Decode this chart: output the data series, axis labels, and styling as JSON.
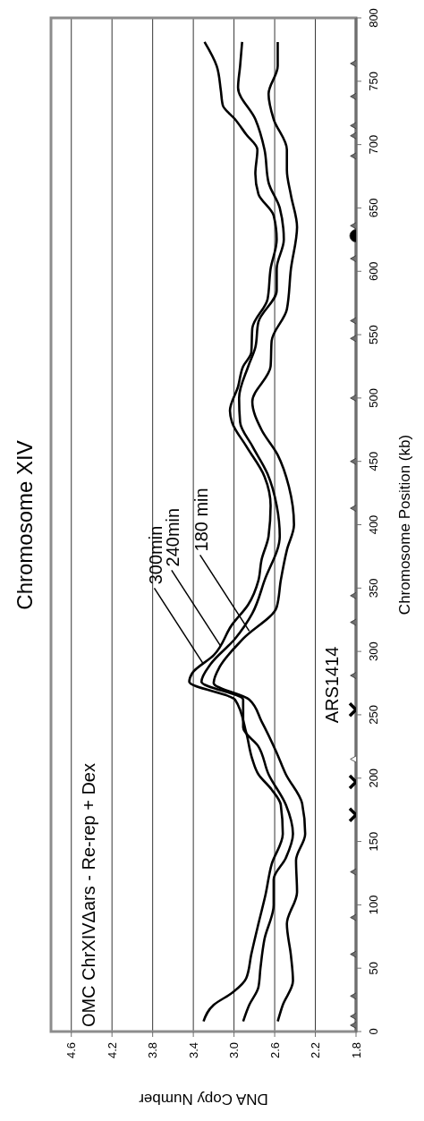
{
  "chart_data": {
    "type": "line",
    "title": "Chromosome XIV",
    "xlabel": "DNA Copy Number",
    "ylabel": "Chromosome Position (kb)",
    "xlim": [
      4.8,
      1.8
    ],
    "xticks": [
      4.6,
      4.2,
      3.8,
      3.4,
      {
        "value": 3.0,
        "label": "3.0"
      },
      2.6,
      2.2,
      1.8
    ],
    "ylim": [
      0,
      800
    ],
    "yticks": [
      0,
      50,
      100,
      150,
      200,
      250,
      300,
      350,
      400,
      450,
      500,
      550,
      600,
      650,
      700,
      750,
      800
    ],
    "grid": "x",
    "line_style": "solid",
    "annotations": [
      "OMC ChrXIVΔars - Re-rep + Dex",
      {
        "text": "300min",
        "x": 3.3,
        "y": 290
      },
      {
        "text": "240min",
        "x": 3.13,
        "y": 304
      },
      {
        "text": "180 min",
        "x": 2.85,
        "y": 316
      },
      {
        "text": "ARS1414",
        "x": 1.8,
        "y": 254
      }
    ],
    "series": [
      {
        "type": "line",
        "color": "#000000",
        "x": [
          3.3,
          3.2,
          3.01,
          2.88,
          2.83,
          2.76,
          2.69,
          2.63,
          2.52,
          2.54,
          2.63,
          2.76,
          2.82,
          2.88,
          2.99,
          3.44,
          3.41,
          3.2,
          3.02,
          2.86,
          2.76,
          2.73,
          2.66,
          2.64,
          2.7,
          2.88,
          3.02,
          3.04,
          2.96,
          2.91,
          2.83,
          2.82,
          2.67,
          2.64,
          2.58,
          2.61,
          2.76,
          2.79,
          2.77,
          2.88,
          2.99,
          3.11,
          3.13,
          3.17,
          3.29
        ],
        "values": [
          8,
          21,
          31,
          42,
          61,
          85,
          108,
          132,
          156,
          179,
          191,
          203,
          215,
          236,
          262,
          276,
          283,
          297,
          321,
          337,
          356,
          372,
          391,
          415,
          438,
          462,
          481,
          490,
          509,
          525,
          536,
          555,
          578,
          602,
          625,
          644,
          661,
          677,
          696,
          708,
          720,
          731,
          743,
          762,
          781
        ]
      },
      {
        "type": "line",
        "color": "#000000",
        "x": [
          2.91,
          2.85,
          2.76,
          2.74,
          2.7,
          2.61,
          2.61,
          2.49,
          2.42,
          2.49,
          2.66,
          2.76,
          2.91,
          2.91,
          3.32,
          3.23,
          2.99,
          2.82,
          2.7,
          2.55,
          2.58,
          2.67,
          2.82,
          2.94,
          2.95,
          2.86,
          2.79,
          2.76,
          2.58,
          2.58,
          2.51,
          2.55,
          2.66,
          2.7,
          2.79,
          2.96,
          2.94,
          2.92
        ],
        "values": [
          8,
          21,
          35,
          50,
          73,
          100,
          120,
          137,
          156,
          179,
          203,
          225,
          240,
          262,
          276,
          290,
          310,
          330,
          356,
          391,
          415,
          440,
          462,
          481,
          500,
          525,
          540,
          560,
          585,
          602,
          625,
          650,
          670,
          696,
          720,
          745,
          762,
          781
        ]
      },
      {
        "type": "line",
        "color": "#000000",
        "x": [
          2.57,
          2.52,
          2.42,
          2.44,
          2.48,
          2.38,
          2.39,
          2.3,
          2.33,
          2.49,
          2.58,
          2.73,
          2.85,
          3.2,
          3.14,
          2.91,
          2.58,
          2.54,
          2.48,
          2.41,
          2.46,
          2.57,
          2.73,
          2.82,
          2.64,
          2.63,
          2.48,
          2.44,
          2.38,
          2.44,
          2.48,
          2.48,
          2.61,
          2.66,
          2.57,
          2.57
        ],
        "values": [
          8,
          21,
          40,
          60,
          85,
          110,
          135,
          156,
          180,
          203,
          220,
          245,
          262,
          275,
          288,
          310,
          335,
          356,
          380,
          400,
          430,
          455,
          475,
          497,
          525,
          545,
          570,
          602,
          635,
          660,
          680,
          696,
          720,
          740,
          762,
          781
        ]
      },
      {
        "type": "scatter",
        "color": "#6e6e6e",
        "marker": "triangle",
        "x": [
          1.8,
          1.8,
          1.8,
          1.8,
          1.8,
          1.8,
          1.8,
          1.8,
          1.8,
          1.8,
          1.8,
          1.8,
          1.8,
          1.8,
          1.8,
          1.8,
          1.8,
          1.8,
          1.8,
          1.8,
          1.8
        ],
        "values": [
          5,
          12,
          28,
          61,
          90,
          126,
          281,
          323,
          344,
          413,
          450,
          500,
          547,
          561,
          610,
          636,
          691,
          707,
          715,
          738,
          764
        ]
      },
      {
        "type": "scatter",
        "color": "#ffffff",
        "marker": "triangle",
        "x": [
          1.8
        ],
        "values": [
          215
        ]
      },
      {
        "type": "scatter",
        "color": "#000000",
        "marker": "cross",
        "x": [
          1.8,
          1.8,
          1.8
        ],
        "values": [
          171,
          197,
          254
        ]
      },
      {
        "type": "scatter",
        "color": "#000000",
        "marker": "circle",
        "x": [
          1.8
        ],
        "values": [
          628
        ]
      }
    ]
  }
}
